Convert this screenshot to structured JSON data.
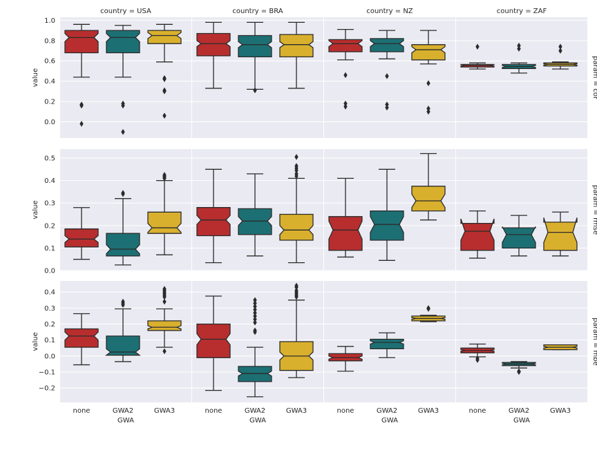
{
  "figure": {
    "col_labels": [
      "country = USA",
      "country = BRA",
      "country = NZ",
      "country = ZAF"
    ],
    "row_labels": [
      "param = cor",
      "param = rmse",
      "param = mbe"
    ],
    "ylabel": "value",
    "xlabel": "GWA",
    "colors": {
      "none": "#b82e2e",
      "GWA2": "#1c7074",
      "GWA3": "#d9b02e",
      "panel_bg": "#eaeaf2",
      "grid": "#ffffff",
      "edge": "#2b2b2b"
    }
  },
  "chart_data": [
    {
      "type": "boxplot",
      "param": "cor",
      "ylim": [
        -0.16,
        1.03
      ],
      "yticks": [
        0.0,
        0.2,
        0.4,
        0.6,
        0.8,
        1.0
      ],
      "ytick_labels": [
        "0.0",
        "0.2",
        "0.4",
        "0.6",
        "0.8",
        "1.0"
      ],
      "categories": [
        "none",
        "GWA2",
        "GWA3"
      ],
      "panels": [
        {
          "country": "USA",
          "boxes": [
            {
              "q1": 0.68,
              "median": 0.83,
              "q3": 0.9,
              "whislo": 0.44,
              "whishi": 0.96,
              "fliers": [
                0.17,
                0.16,
                -0.02
              ],
              "nlo": 0.79,
              "nhi": 0.87
            },
            {
              "q1": 0.68,
              "median": 0.83,
              "q3": 0.9,
              "whislo": 0.44,
              "whishi": 0.95,
              "fliers": [
                0.18,
                0.16,
                -0.1
              ],
              "nlo": 0.79,
              "nhi": 0.87
            },
            {
              "q1": 0.77,
              "median": 0.85,
              "q3": 0.9,
              "whislo": 0.59,
              "whishi": 0.96,
              "fliers": [
                0.43,
                0.42,
                0.31,
                0.3,
                0.06
              ],
              "nlo": 0.82,
              "nhi": 0.88
            }
          ]
        },
        {
          "country": "BRA",
          "boxes": [
            {
              "q1": 0.65,
              "median": 0.77,
              "q3": 0.87,
              "whislo": 0.33,
              "whishi": 0.98,
              "fliers": [],
              "nlo": 0.74,
              "nhi": 0.8
            },
            {
              "q1": 0.64,
              "median": 0.76,
              "q3": 0.85,
              "whislo": 0.32,
              "whishi": 0.98,
              "fliers": [
                0.31
              ],
              "nlo": 0.73,
              "nhi": 0.79
            },
            {
              "q1": 0.64,
              "median": 0.76,
              "q3": 0.86,
              "whislo": 0.33,
              "whishi": 0.98,
              "fliers": [],
              "nlo": 0.73,
              "nhi": 0.79
            }
          ]
        },
        {
          "country": "NZ",
          "boxes": [
            {
              "q1": 0.69,
              "median": 0.77,
              "q3": 0.81,
              "whislo": 0.61,
              "whishi": 0.91,
              "fliers": [
                0.46,
                0.18,
                0.15
              ],
              "nlo": 0.74,
              "nhi": 0.8
            },
            {
              "q1": 0.69,
              "median": 0.77,
              "q3": 0.82,
              "whislo": 0.62,
              "whishi": 0.9,
              "fliers": [
                0.45,
                0.17,
                0.14
              ],
              "nlo": 0.74,
              "nhi": 0.8
            },
            {
              "q1": 0.61,
              "median": 0.71,
              "q3": 0.76,
              "whislo": 0.57,
              "whishi": 0.9,
              "fliers": [
                0.38,
                0.13,
                0.1
              ],
              "nlo": 0.68,
              "nhi": 0.74
            }
          ]
        },
        {
          "country": "ZAF",
          "boxes": [
            {
              "q1": 0.54,
              "median": 0.555,
              "q3": 0.565,
              "whislo": 0.52,
              "whishi": 0.58,
              "fliers": [
                0.74
              ],
              "nlo": 0.548,
              "nhi": 0.562
            },
            {
              "q1": 0.525,
              "median": 0.545,
              "q3": 0.565,
              "whislo": 0.48,
              "whishi": 0.58,
              "fliers": [
                0.75,
                0.72
              ],
              "nlo": 0.535,
              "nhi": 0.555
            },
            {
              "q1": 0.55,
              "median": 0.565,
              "q3": 0.58,
              "whislo": 0.52,
              "whishi": 0.59,
              "fliers": [
                0.74,
                0.7
              ],
              "nlo": 0.558,
              "nhi": 0.572
            }
          ]
        }
      ]
    },
    {
      "type": "boxplot",
      "param": "rmse",
      "ylim": [
        0.0,
        0.54
      ],
      "yticks": [
        0.0,
        0.1,
        0.2,
        0.3,
        0.4,
        0.5
      ],
      "ytick_labels": [
        "0.0",
        "0.1",
        "0.2",
        "0.3",
        "0.4",
        "0.5"
      ],
      "categories": [
        "none",
        "GWA2",
        "GWA3"
      ],
      "panels": [
        {
          "country": "USA",
          "boxes": [
            {
              "q1": 0.105,
              "median": 0.14,
              "q3": 0.185,
              "whislo": 0.05,
              "whishi": 0.28,
              "fliers": [],
              "nlo": 0.125,
              "nhi": 0.155
            },
            {
              "q1": 0.065,
              "median": 0.095,
              "q3": 0.165,
              "whislo": 0.025,
              "whishi": 0.32,
              "fliers": [
                0.345,
                0.34
              ],
              "nlo": 0.075,
              "nhi": 0.115
            },
            {
              "q1": 0.165,
              "median": 0.19,
              "q3": 0.26,
              "whislo": 0.07,
              "whishi": 0.4,
              "fliers": [
                0.425,
                0.42,
                0.415,
                0.41
              ],
              "nlo": 0.17,
              "nhi": 0.21
            }
          ]
        },
        {
          "country": "BRA",
          "boxes": [
            {
              "q1": 0.155,
              "median": 0.225,
              "q3": 0.28,
              "whislo": 0.035,
              "whishi": 0.45,
              "fliers": [],
              "nlo": 0.205,
              "nhi": 0.245
            },
            {
              "q1": 0.16,
              "median": 0.22,
              "q3": 0.275,
              "whislo": 0.065,
              "whishi": 0.43,
              "fliers": [],
              "nlo": 0.2,
              "nhi": 0.24
            },
            {
              "q1": 0.135,
              "median": 0.18,
              "q3": 0.25,
              "whislo": 0.035,
              "whishi": 0.41,
              "fliers": [
                0.505,
                0.465,
                0.455,
                0.445,
                0.43,
                0.42
              ],
              "nlo": 0.16,
              "nhi": 0.2
            }
          ]
        },
        {
          "country": "NZ",
          "boxes": [
            {
              "q1": 0.09,
              "median": 0.18,
              "q3": 0.24,
              "whislo": 0.06,
              "whishi": 0.41,
              "fliers": [],
              "nlo": 0.14,
              "nhi": 0.22
            },
            {
              "q1": 0.135,
              "median": 0.205,
              "q3": 0.265,
              "whislo": 0.045,
              "whishi": 0.45,
              "fliers": [],
              "nlo": 0.17,
              "nhi": 0.24
            },
            {
              "q1": 0.265,
              "median": 0.31,
              "q3": 0.375,
              "whislo": 0.225,
              "whishi": 0.52,
              "fliers": [],
              "nlo": 0.28,
              "nhi": 0.34
            }
          ]
        },
        {
          "country": "ZAF",
          "boxes": [
            {
              "q1": 0.09,
              "median": 0.175,
              "q3": 0.21,
              "whislo": 0.055,
              "whishi": 0.265,
              "fliers": [],
              "nlo": 0.135,
              "nhi": 0.23
            },
            {
              "q1": 0.1,
              "median": 0.16,
              "q3": 0.19,
              "whislo": 0.065,
              "whishi": 0.245,
              "fliers": [],
              "nlo": 0.125,
              "nhi": 0.195
            },
            {
              "q1": 0.09,
              "median": 0.17,
              "q3": 0.215,
              "whislo": 0.065,
              "whishi": 0.26,
              "fliers": [],
              "nlo": 0.125,
              "nhi": 0.235
            }
          ]
        }
      ]
    },
    {
      "type": "boxplot",
      "param": "mbe",
      "ylim": [
        -0.29,
        0.47
      ],
      "yticks": [
        -0.2,
        -0.1,
        0.0,
        0.1,
        0.2,
        0.3,
        0.4
      ],
      "ytick_labels": [
        "−0.2",
        "−0.1",
        "0.0",
        "0.1",
        "0.2",
        "0.3",
        "0.4"
      ],
      "categories": [
        "none",
        "GWA2",
        "GWA3"
      ],
      "panels": [
        {
          "country": "USA",
          "boxes": [
            {
              "q1": 0.055,
              "median": 0.125,
              "q3": 0.17,
              "whislo": -0.055,
              "whishi": 0.265,
              "fliers": [],
              "nlo": 0.1,
              "nhi": 0.15
            },
            {
              "q1": 0.005,
              "median": 0.025,
              "q3": 0.125,
              "whislo": -0.035,
              "whishi": 0.295,
              "fliers": [
                0.34,
                0.33,
                0.32
              ],
              "nlo": 0.005,
              "nhi": 0.045
            },
            {
              "q1": 0.16,
              "median": 0.18,
              "q3": 0.22,
              "whislo": 0.055,
              "whishi": 0.295,
              "fliers": [
                0.42,
                0.41,
                0.4,
                0.39,
                0.38,
                0.37,
                0.34,
                0.03
              ],
              "nlo": 0.17,
              "nhi": 0.19
            }
          ]
        },
        {
          "country": "BRA",
          "boxes": [
            {
              "q1": -0.01,
              "median": 0.105,
              "q3": 0.2,
              "whislo": -0.215,
              "whishi": 0.375,
              "fliers": [],
              "nlo": 0.07,
              "nhi": 0.14
            },
            {
              "q1": -0.16,
              "median": -0.11,
              "q3": -0.065,
              "whislo": -0.255,
              "whishi": 0.055,
              "fliers": [
                0.35,
                0.33,
                0.31,
                0.29,
                0.27,
                0.25,
                0.23,
                0.21,
                0.16,
                0.15
              ],
              "nlo": -0.125,
              "nhi": -0.095
            },
            {
              "q1": -0.09,
              "median": 0.0,
              "q3": 0.09,
              "whislo": -0.135,
              "whishi": 0.35,
              "fliers": [
                0.44,
                0.43,
                0.41,
                0.4,
                0.39,
                0.38,
                0.37
              ],
              "nlo": -0.025,
              "nhi": 0.025
            }
          ]
        },
        {
          "country": "NZ",
          "boxes": [
            {
              "q1": -0.03,
              "median": -0.01,
              "q3": 0.015,
              "whislo": -0.095,
              "whishi": 0.06,
              "fliers": [],
              "nlo": -0.02,
              "nhi": 0.0
            },
            {
              "q1": 0.045,
              "median": 0.085,
              "q3": 0.105,
              "whislo": -0.01,
              "whishi": 0.145,
              "fliers": [],
              "nlo": 0.075,
              "nhi": 0.095
            },
            {
              "q1": 0.22,
              "median": 0.235,
              "q3": 0.25,
              "whislo": 0.215,
              "whishi": 0.255,
              "fliers": [
                0.3,
                0.295
              ],
              "nlo": 0.23,
              "nhi": 0.24
            }
          ]
        },
        {
          "country": "ZAF",
          "boxes": [
            {
              "q1": 0.02,
              "median": 0.035,
              "q3": 0.05,
              "whislo": -0.005,
              "whishi": 0.075,
              "fliers": [
                -0.015,
                -0.025
              ],
              "nlo": 0.03,
              "nhi": 0.04
            },
            {
              "q1": -0.06,
              "median": -0.05,
              "q3": -0.04,
              "whislo": -0.075,
              "whishi": -0.035,
              "fliers": [
                -0.095,
                -0.1
              ],
              "nlo": -0.055,
              "nhi": -0.045
            },
            {
              "q1": 0.04,
              "median": 0.055,
              "q3": 0.07,
              "whislo": 0.04,
              "whishi": 0.07,
              "fliers": [],
              "nlo": 0.05,
              "nhi": 0.06
            }
          ]
        }
      ]
    }
  ]
}
